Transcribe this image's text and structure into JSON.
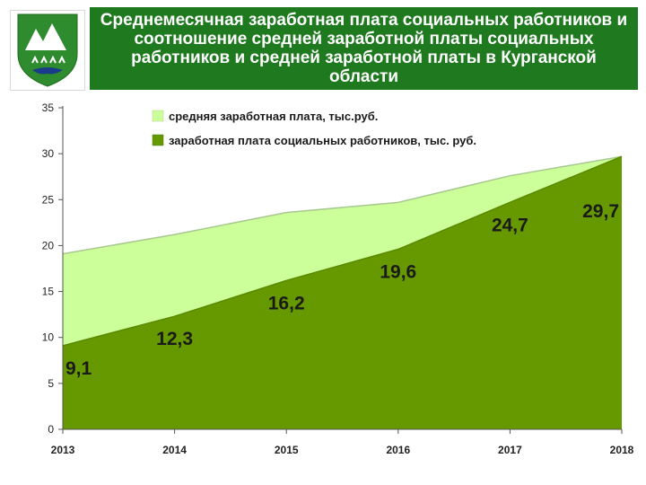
{
  "header": {
    "title": "Среднемесячная заработная плата социальных работников и соотношение средней заработной платы социальных работников и средней заработной платы в Курганской области"
  },
  "emblem": {
    "icon": "kurgan-coat-of-arms-icon"
  },
  "colors": {
    "header_bg": "#1f7a1f",
    "average_area": "#ccff99",
    "social_area": "#669900"
  },
  "chart_data": {
    "type": "area",
    "title": "Среднемесячная заработная плата социальных работников и соотношение средней заработной платы социальных работников и средней заработной платы в Курганской области",
    "x": [
      "2013",
      "2014",
      "2015",
      "2016",
      "2017",
      "2018"
    ],
    "ylim": [
      0,
      35
    ],
    "yticks": [
      0,
      5,
      10,
      15,
      20,
      25,
      30,
      35
    ],
    "grid": false,
    "legend_position": "top",
    "series": [
      {
        "name": "средняя заработная плата, тыс.руб.",
        "values": [
          19.1,
          21.2,
          23.6,
          24.7,
          27.6,
          29.7
        ],
        "color": "#ccff99"
      },
      {
        "name": "заработная плата социальных работников, тыс. руб.",
        "values": [
          9.1,
          12.3,
          16.2,
          19.6,
          24.7,
          29.7
        ],
        "labels": [
          "9,1",
          "12,3",
          "16,2",
          "19,6",
          "24,7",
          "29,7"
        ],
        "color": "#669900"
      }
    ]
  }
}
